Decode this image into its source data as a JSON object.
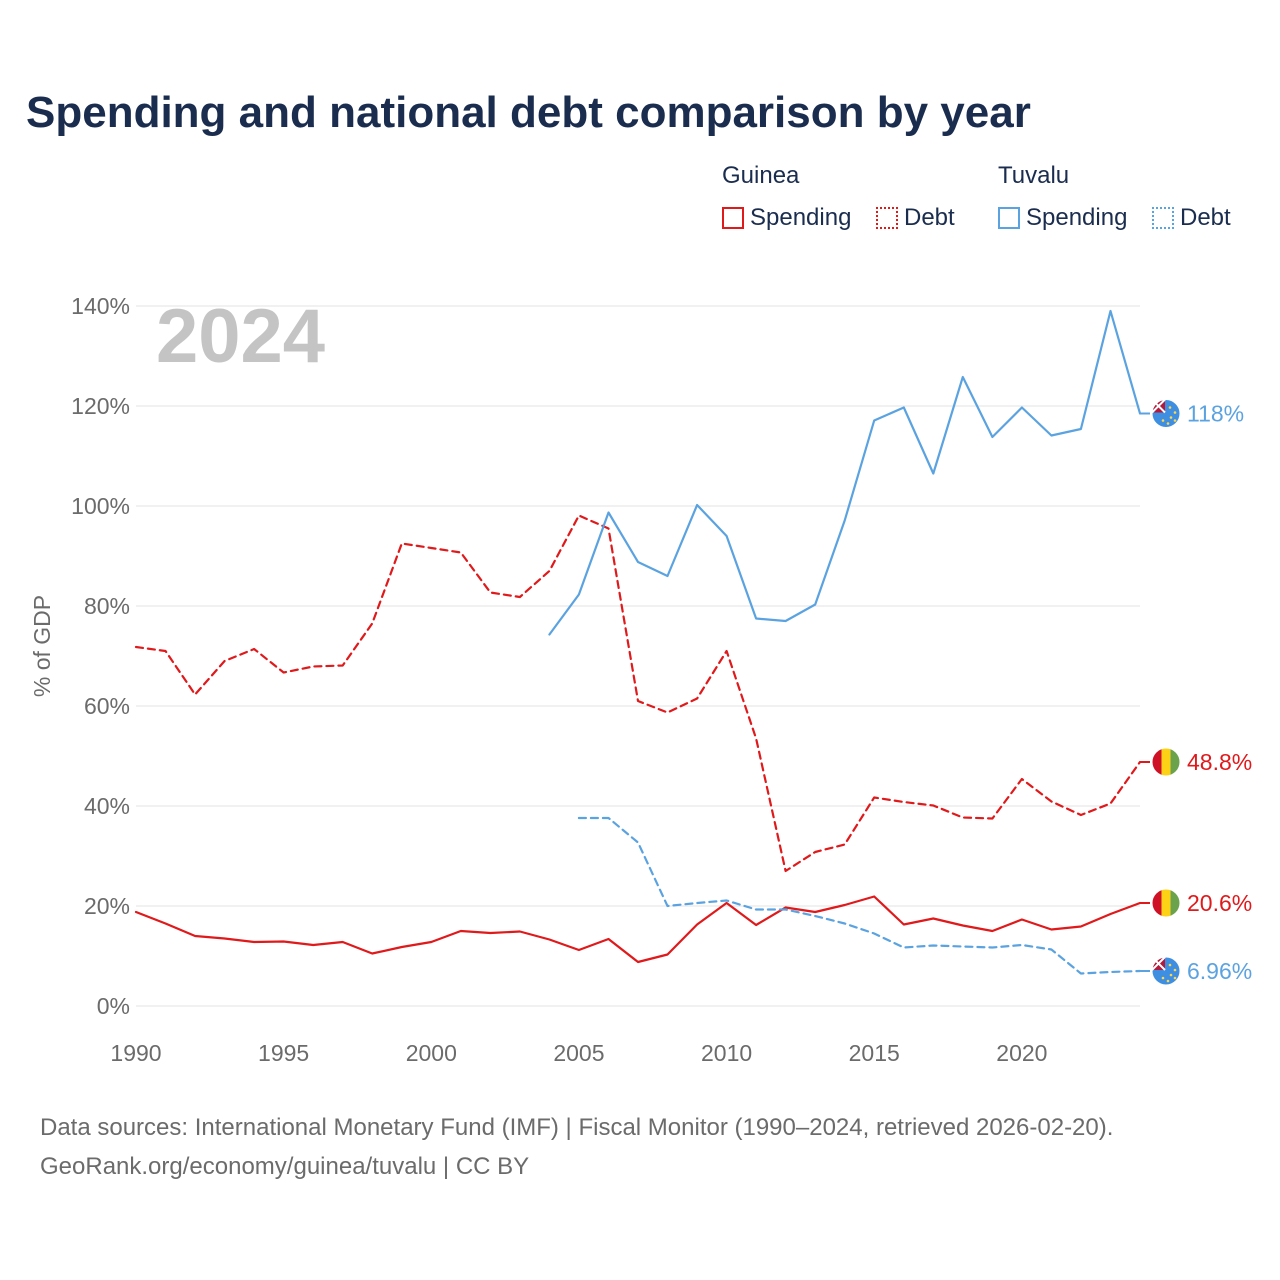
{
  "title": "Spending and national debt comparison by year",
  "legend": {
    "groups": [
      {
        "country": "Guinea",
        "color": "#e0191b",
        "items": [
          {
            "label": "Spending",
            "style": "solid"
          },
          {
            "label": "Debt",
            "style": "dotted"
          }
        ]
      },
      {
        "country": "Tuvalu",
        "color": "#5ba3e0",
        "items": [
          {
            "label": "Spending",
            "style": "solid"
          },
          {
            "label": "Debt",
            "style": "dotted"
          }
        ]
      }
    ]
  },
  "footer": {
    "line1": "Data sources: International Monetary Fund (IMF) | Fiscal Monitor (1990–2024, retrieved 2026-02-20).",
    "line2": "GeoRank.org/economy/guinea/tuvalu | CC BY"
  },
  "chart_data": {
    "type": "line",
    "title": "Spending and national debt comparison by year",
    "year_label": "2024",
    "ylabel": "% of GDP",
    "xlabel": "",
    "xlim": [
      1990,
      2024
    ],
    "ylim": [
      0,
      140
    ],
    "x_ticks": [
      1990,
      1995,
      2000,
      2005,
      2010,
      2015,
      2020
    ],
    "y_ticks": [
      0,
      20,
      40,
      60,
      80,
      100,
      120,
      140
    ],
    "y_tick_labels": [
      "0%",
      "20%",
      "40%",
      "60%",
      "80%",
      "100%",
      "120%",
      "140%"
    ],
    "grid": true,
    "series": [
      {
        "name": "Guinea Debt",
        "country": "Guinea",
        "indicator": "Debt",
        "color": "#e0191b",
        "dash": true,
        "end_label": "48.8%",
        "flag": "guinea",
        "x": [
          1990,
          1991,
          1992,
          1993,
          1994,
          1995,
          1996,
          1997,
          1998,
          1999,
          2000,
          2001,
          2002,
          2003,
          2004,
          2005,
          2006,
          2007,
          2008,
          2009,
          2010,
          2011,
          2012,
          2013,
          2014,
          2015,
          2016,
          2017,
          2018,
          2019,
          2020,
          2021,
          2022,
          2023,
          2024
        ],
        "values": [
          71.8,
          71.0,
          62.3,
          69.0,
          71.4,
          66.7,
          67.9,
          68.1,
          76.5,
          92.5,
          91.6,
          90.7,
          82.7,
          81.8,
          87.0,
          98.1,
          95.5,
          61.0,
          58.7,
          61.5,
          71.0,
          53.5,
          27.0,
          30.8,
          32.3,
          41.7,
          40.8,
          40.1,
          37.7,
          37.5,
          45.4,
          40.9,
          38.2,
          40.5,
          48.8
        ]
      },
      {
        "name": "Guinea Spending",
        "country": "Guinea",
        "indicator": "Spending",
        "color": "#e0191b",
        "dash": false,
        "end_label": "20.6%",
        "flag": "guinea",
        "x": [
          1990,
          1991,
          1992,
          1993,
          1994,
          1995,
          1996,
          1997,
          1998,
          1999,
          2000,
          2001,
          2002,
          2003,
          2004,
          2005,
          2006,
          2007,
          2008,
          2009,
          2010,
          2011,
          2012,
          2013,
          2014,
          2015,
          2016,
          2017,
          2018,
          2019,
          2020,
          2021,
          2022,
          2023,
          2024
        ],
        "values": [
          18.8,
          16.5,
          14.0,
          13.5,
          12.8,
          12.9,
          12.2,
          12.8,
          10.5,
          11.8,
          12.8,
          15.0,
          14.6,
          14.9,
          13.3,
          11.2,
          13.4,
          8.8,
          10.3,
          16.3,
          20.6,
          16.2,
          19.7,
          18.8,
          20.2,
          21.9,
          16.3,
          17.5,
          16.1,
          15.0,
          17.3,
          15.3,
          15.9,
          18.4,
          20.6
        ]
      },
      {
        "name": "Tuvalu Spending",
        "country": "Tuvalu",
        "indicator": "Spending",
        "color": "#5ba3e0",
        "dash": false,
        "end_label": "118%",
        "flag": "tuvalu",
        "x": [
          2004,
          2005,
          2006,
          2007,
          2008,
          2009,
          2010,
          2011,
          2012,
          2013,
          2014,
          2015,
          2016,
          2017,
          2018,
          2019,
          2020,
          2021,
          2022,
          2023,
          2024
        ],
        "values": [
          74.3,
          82.3,
          98.7,
          88.8,
          86.0,
          100.2,
          94.0,
          77.5,
          77.0,
          80.3,
          97.1,
          117.1,
          119.7,
          106.5,
          125.8,
          113.8,
          119.7,
          114.1,
          115.4,
          139.0,
          118.5
        ]
      },
      {
        "name": "Tuvalu Debt",
        "country": "Tuvalu",
        "indicator": "Debt",
        "color": "#5ba3e0",
        "dash": true,
        "end_label": "6.96%",
        "flag": "tuvalu",
        "x": [
          2005,
          2006,
          2007,
          2008,
          2009,
          2010,
          2011,
          2012,
          2013,
          2014,
          2015,
          2016,
          2017,
          2018,
          2019,
          2020,
          2021,
          2022,
          2023,
          2024
        ],
        "values": [
          37.6,
          37.6,
          32.7,
          20.0,
          20.6,
          21.1,
          19.3,
          19.3,
          18.0,
          16.5,
          14.5,
          11.7,
          12.1,
          11.9,
          11.7,
          12.2,
          11.3,
          6.5,
          6.8,
          7.0
        ]
      }
    ]
  }
}
